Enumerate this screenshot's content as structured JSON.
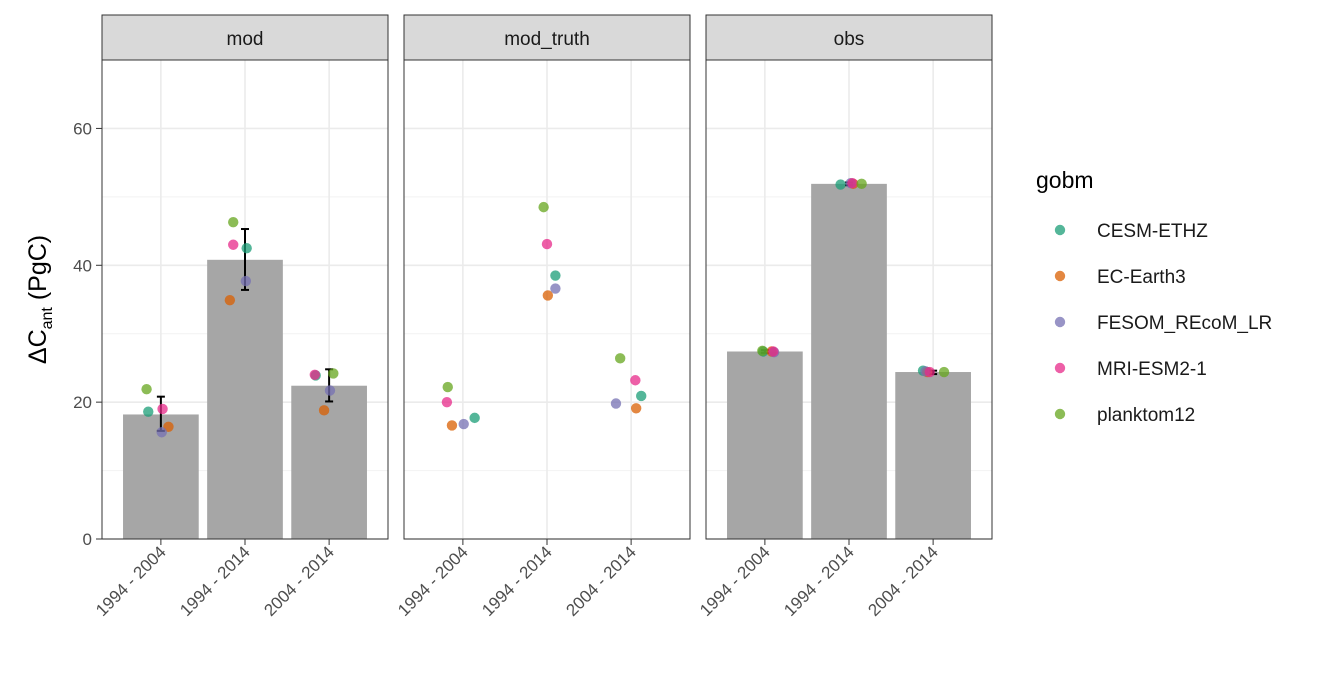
{
  "chart_data": {
    "type": "bar",
    "ylabel_main": "ΔC",
    "ylabel_sub": "ant",
    "ylabel_unit": " (PgC)",
    "ylim": [
      0,
      70
    ],
    "yticks": [
      0,
      20,
      40,
      60
    ],
    "categories": [
      "1994 - 2004",
      "1994 - 2014",
      "2004 - 2014"
    ],
    "legend_title": "gobm",
    "legend_position": "right",
    "models": [
      {
        "name": "CESM-ETHZ",
        "color": "#1B9E77"
      },
      {
        "name": "EC-Earth3",
        "color": "#D95F02"
      },
      {
        "name": "FESOM_REcoM_LR",
        "color": "#7570B3"
      },
      {
        "name": "MRI-ESM2-1",
        "color": "#E7298A"
      },
      {
        "name": "planktom12",
        "color": "#66A61E"
      }
    ],
    "panels": [
      {
        "label": "mod",
        "bars": [
          18.2,
          40.8,
          22.4
        ],
        "errors": [
          [
            15.8,
            20.8
          ],
          [
            36.4,
            45.3
          ],
          [
            20.1,
            24.8
          ]
        ],
        "points": [
          {
            "cat": 0,
            "model": "CESM-ETHZ",
            "y": 18.6,
            "dx": -0.15
          },
          {
            "cat": 0,
            "model": "EC-Earth3",
            "y": 16.4,
            "dx": 0.09
          },
          {
            "cat": 0,
            "model": "FESOM_REcoM_LR",
            "y": 15.6,
            "dx": 0.01
          },
          {
            "cat": 0,
            "model": "MRI-ESM2-1",
            "y": 19.0,
            "dx": 0.02
          },
          {
            "cat": 0,
            "model": "planktom12",
            "y": 21.9,
            "dx": -0.17
          },
          {
            "cat": 1,
            "model": "CESM-ETHZ",
            "y": 42.5,
            "dx": 0.02
          },
          {
            "cat": 1,
            "model": "EC-Earth3",
            "y": 34.9,
            "dx": -0.18
          },
          {
            "cat": 1,
            "model": "FESOM_REcoM_LR",
            "y": 37.7,
            "dx": 0.01
          },
          {
            "cat": 1,
            "model": "MRI-ESM2-1",
            "y": 43.0,
            "dx": -0.14
          },
          {
            "cat": 1,
            "model": "planktom12",
            "y": 46.3,
            "dx": -0.14
          },
          {
            "cat": 2,
            "model": "CESM-ETHZ",
            "y": 23.9,
            "dx": -0.16
          },
          {
            "cat": 2,
            "model": "EC-Earth3",
            "y": 18.8,
            "dx": -0.06
          },
          {
            "cat": 2,
            "model": "FESOM_REcoM_LR",
            "y": 21.7,
            "dx": 0.01
          },
          {
            "cat": 2,
            "model": "MRI-ESM2-1",
            "y": 24.0,
            "dx": -0.17
          },
          {
            "cat": 2,
            "model": "planktom12",
            "y": 24.2,
            "dx": 0.05
          }
        ]
      },
      {
        "label": "mod_truth",
        "bars": [],
        "errors": [],
        "points": [
          {
            "cat": 0,
            "model": "CESM-ETHZ",
            "y": 17.7,
            "dx": 0.14
          },
          {
            "cat": 0,
            "model": "EC-Earth3",
            "y": 16.6,
            "dx": -0.13
          },
          {
            "cat": 0,
            "model": "FESOM_REcoM_LR",
            "y": 16.8,
            "dx": 0.01
          },
          {
            "cat": 0,
            "model": "MRI-ESM2-1",
            "y": 20.0,
            "dx": -0.19
          },
          {
            "cat": 0,
            "model": "planktom12",
            "y": 22.2,
            "dx": -0.18
          },
          {
            "cat": 1,
            "model": "CESM-ETHZ",
            "y": 38.5,
            "dx": 0.1
          },
          {
            "cat": 1,
            "model": "EC-Earth3",
            "y": 35.6,
            "dx": 0.01
          },
          {
            "cat": 1,
            "model": "FESOM_REcoM_LR",
            "y": 36.6,
            "dx": 0.1
          },
          {
            "cat": 1,
            "model": "MRI-ESM2-1",
            "y": 43.1,
            "dx": 0.0
          },
          {
            "cat": 1,
            "model": "planktom12",
            "y": 48.5,
            "dx": -0.04
          },
          {
            "cat": 2,
            "model": "CESM-ETHZ",
            "y": 20.9,
            "dx": 0.12
          },
          {
            "cat": 2,
            "model": "EC-Earth3",
            "y": 19.1,
            "dx": 0.06
          },
          {
            "cat": 2,
            "model": "FESOM_REcoM_LR",
            "y": 19.8,
            "dx": -0.18
          },
          {
            "cat": 2,
            "model": "MRI-ESM2-1",
            "y": 23.2,
            "dx": 0.05
          },
          {
            "cat": 2,
            "model": "planktom12",
            "y": 26.4,
            "dx": -0.13
          }
        ]
      },
      {
        "label": "obs",
        "bars": [
          27.4,
          51.9,
          24.4
        ],
        "errors": [
          [
            27.2,
            27.6
          ],
          [
            51.7,
            52.1
          ],
          [
            24.1,
            24.6
          ]
        ],
        "points": [
          {
            "cat": 0,
            "model": "CESM-ETHZ",
            "y": 27.4,
            "dx": -0.02
          },
          {
            "cat": 0,
            "model": "EC-Earth3",
            "y": 27.4,
            "dx": 0.08
          },
          {
            "cat": 0,
            "model": "FESOM_REcoM_LR",
            "y": 27.3,
            "dx": 0.11
          },
          {
            "cat": 0,
            "model": "MRI-ESM2-1",
            "y": 27.4,
            "dx": 0.1
          },
          {
            "cat": 0,
            "model": "planktom12",
            "y": 27.5,
            "dx": -0.03
          },
          {
            "cat": 1,
            "model": "CESM-ETHZ",
            "y": 51.8,
            "dx": -0.1
          },
          {
            "cat": 1,
            "model": "EC-Earth3",
            "y": 51.9,
            "dx": 0.05
          },
          {
            "cat": 1,
            "model": "FESOM_REcoM_LR",
            "y": 52.0,
            "dx": 0.02
          },
          {
            "cat": 1,
            "model": "MRI-ESM2-1",
            "y": 52.0,
            "dx": 0.04
          },
          {
            "cat": 1,
            "model": "planktom12",
            "y": 51.9,
            "dx": 0.15
          },
          {
            "cat": 2,
            "model": "CESM-ETHZ",
            "y": 24.6,
            "dx": -0.12
          },
          {
            "cat": 2,
            "model": "EC-Earth3",
            "y": 24.4,
            "dx": -0.07
          },
          {
            "cat": 2,
            "model": "FESOM_REcoM_LR",
            "y": 24.5,
            "dx": -0.09
          },
          {
            "cat": 2,
            "model": "MRI-ESM2-1",
            "y": 24.4,
            "dx": -0.04
          },
          {
            "cat": 2,
            "model": "planktom12",
            "y": 24.4,
            "dx": 0.13
          }
        ]
      }
    ]
  }
}
